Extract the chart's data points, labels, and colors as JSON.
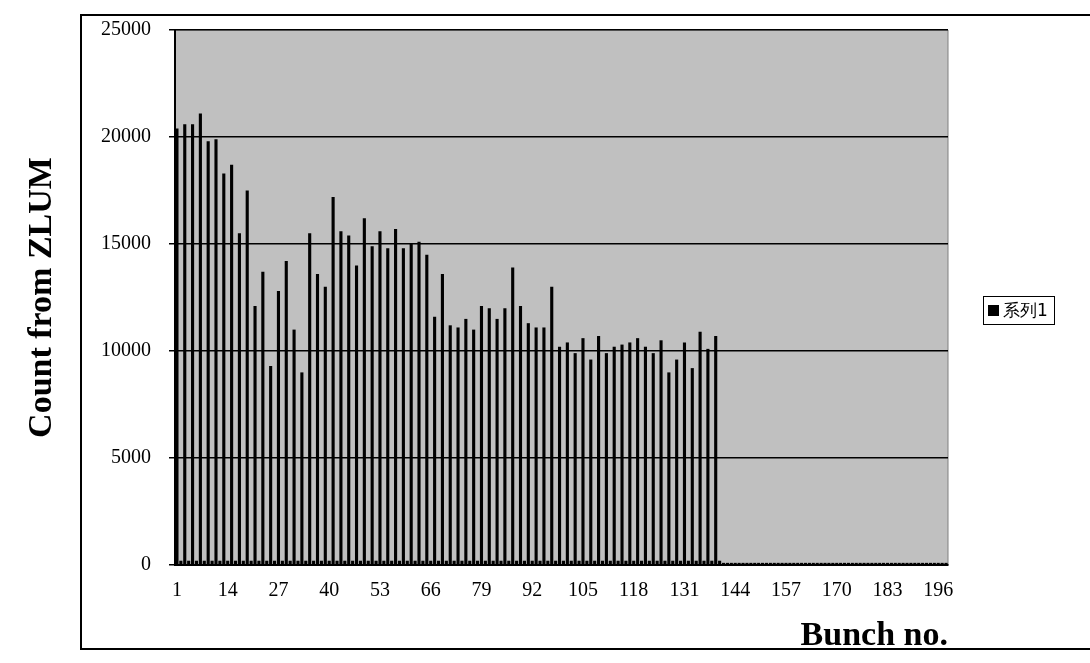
{
  "chart_data": {
    "type": "bar",
    "xlabel": "Bunch no.",
    "ylabel": "Count from ZLUM",
    "categories": [
      "1",
      null,
      null,
      null,
      null,
      null,
      null,
      null,
      null,
      null,
      null,
      null,
      null,
      "14",
      null,
      null,
      null,
      null,
      null,
      null,
      null,
      null,
      null,
      null,
      null,
      null,
      "27",
      null,
      null,
      null,
      null,
      null,
      null,
      null,
      null,
      null,
      null,
      null,
      null,
      "40",
      null,
      null,
      null,
      null,
      null,
      null,
      null,
      null,
      null,
      null,
      null,
      null,
      "53",
      null,
      null,
      null,
      null,
      null,
      null,
      null,
      null,
      null,
      null,
      null,
      null,
      "66",
      null,
      null,
      null,
      null,
      null,
      null,
      null,
      null,
      null,
      null,
      null,
      null,
      "79",
      null,
      null,
      null,
      null,
      null,
      null,
      null,
      null,
      null,
      null,
      null,
      null,
      "92",
      null,
      null,
      null,
      null,
      null,
      null,
      null,
      null,
      null,
      null,
      null,
      null,
      "105",
      null,
      null,
      null,
      null,
      null,
      null,
      null,
      null,
      null,
      null,
      null,
      null,
      "118",
      null,
      null,
      null,
      null,
      null,
      null,
      null,
      null,
      null,
      null,
      null,
      null,
      "131",
      null,
      null,
      null,
      null,
      null,
      null,
      null,
      null,
      null,
      null,
      null,
      null,
      "144",
      null,
      null,
      null,
      null,
      null,
      null,
      null,
      null,
      null,
      null,
      null,
      null,
      "157",
      null,
      null,
      null,
      null,
      null,
      null,
      null,
      null,
      null,
      null,
      null,
      null,
      "170",
      null,
      null,
      null,
      null,
      null,
      null,
      null,
      null,
      null,
      null,
      null,
      null,
      "183",
      null,
      null,
      null,
      null,
      null,
      null,
      null,
      null,
      null,
      null,
      null,
      null,
      "196",
      null,
      null
    ],
    "series": [
      {
        "name": "系列1",
        "color": "#000000",
        "values": [
          20400,
          200,
          20600,
          200,
          20600,
          200,
          21100,
          200,
          19800,
          200,
          19900,
          200,
          18300,
          200,
          18700,
          200,
          15500,
          200,
          17500,
          200,
          12100,
          200,
          13700,
          200,
          9300,
          200,
          12800,
          200,
          14200,
          200,
          11000,
          200,
          9000,
          200,
          15500,
          200,
          13600,
          200,
          13000,
          200,
          17200,
          200,
          15600,
          200,
          15400,
          200,
          14000,
          200,
          16200,
          200,
          14900,
          200,
          15600,
          200,
          14800,
          200,
          15700,
          200,
          14800,
          200,
          15000,
          200,
          15100,
          200,
          14500,
          200,
          11600,
          200,
          13600,
          200,
          11200,
          200,
          11100,
          200,
          11500,
          200,
          11000,
          200,
          12100,
          200,
          12000,
          200,
          11500,
          200,
          12000,
          200,
          13900,
          200,
          12100,
          200,
          11300,
          200,
          11100,
          200,
          11100,
          200,
          13000,
          200,
          10200,
          200,
          10400,
          200,
          9900,
          200,
          10600,
          200,
          9600,
          200,
          10700,
          200,
          9900,
          200,
          10200,
          200,
          10300,
          200,
          10400,
          200,
          10600,
          200,
          10200,
          200,
          9900,
          200,
          10500,
          200,
          9000,
          200,
          9600,
          200,
          10400,
          200,
          9200,
          200,
          10900,
          200,
          10100,
          200,
          10700,
          200,
          100,
          100,
          100,
          100,
          100,
          100,
          100,
          100,
          100,
          100,
          100,
          100,
          100,
          100,
          100,
          100,
          100,
          100,
          100,
          100,
          100,
          100,
          100,
          100,
          100,
          100,
          100,
          100,
          100,
          100,
          100,
          100,
          100,
          100,
          100,
          100,
          100,
          100,
          100,
          100,
          100,
          100,
          100,
          100,
          100,
          100,
          100,
          100,
          100,
          100,
          100,
          100,
          100,
          100,
          100,
          100,
          100,
          100
        ]
      }
    ],
    "ylim": [
      0,
      25000
    ],
    "yticks": [
      0,
      5000,
      10000,
      15000,
      20000,
      25000
    ],
    "grid": "y",
    "legend": "right"
  }
}
